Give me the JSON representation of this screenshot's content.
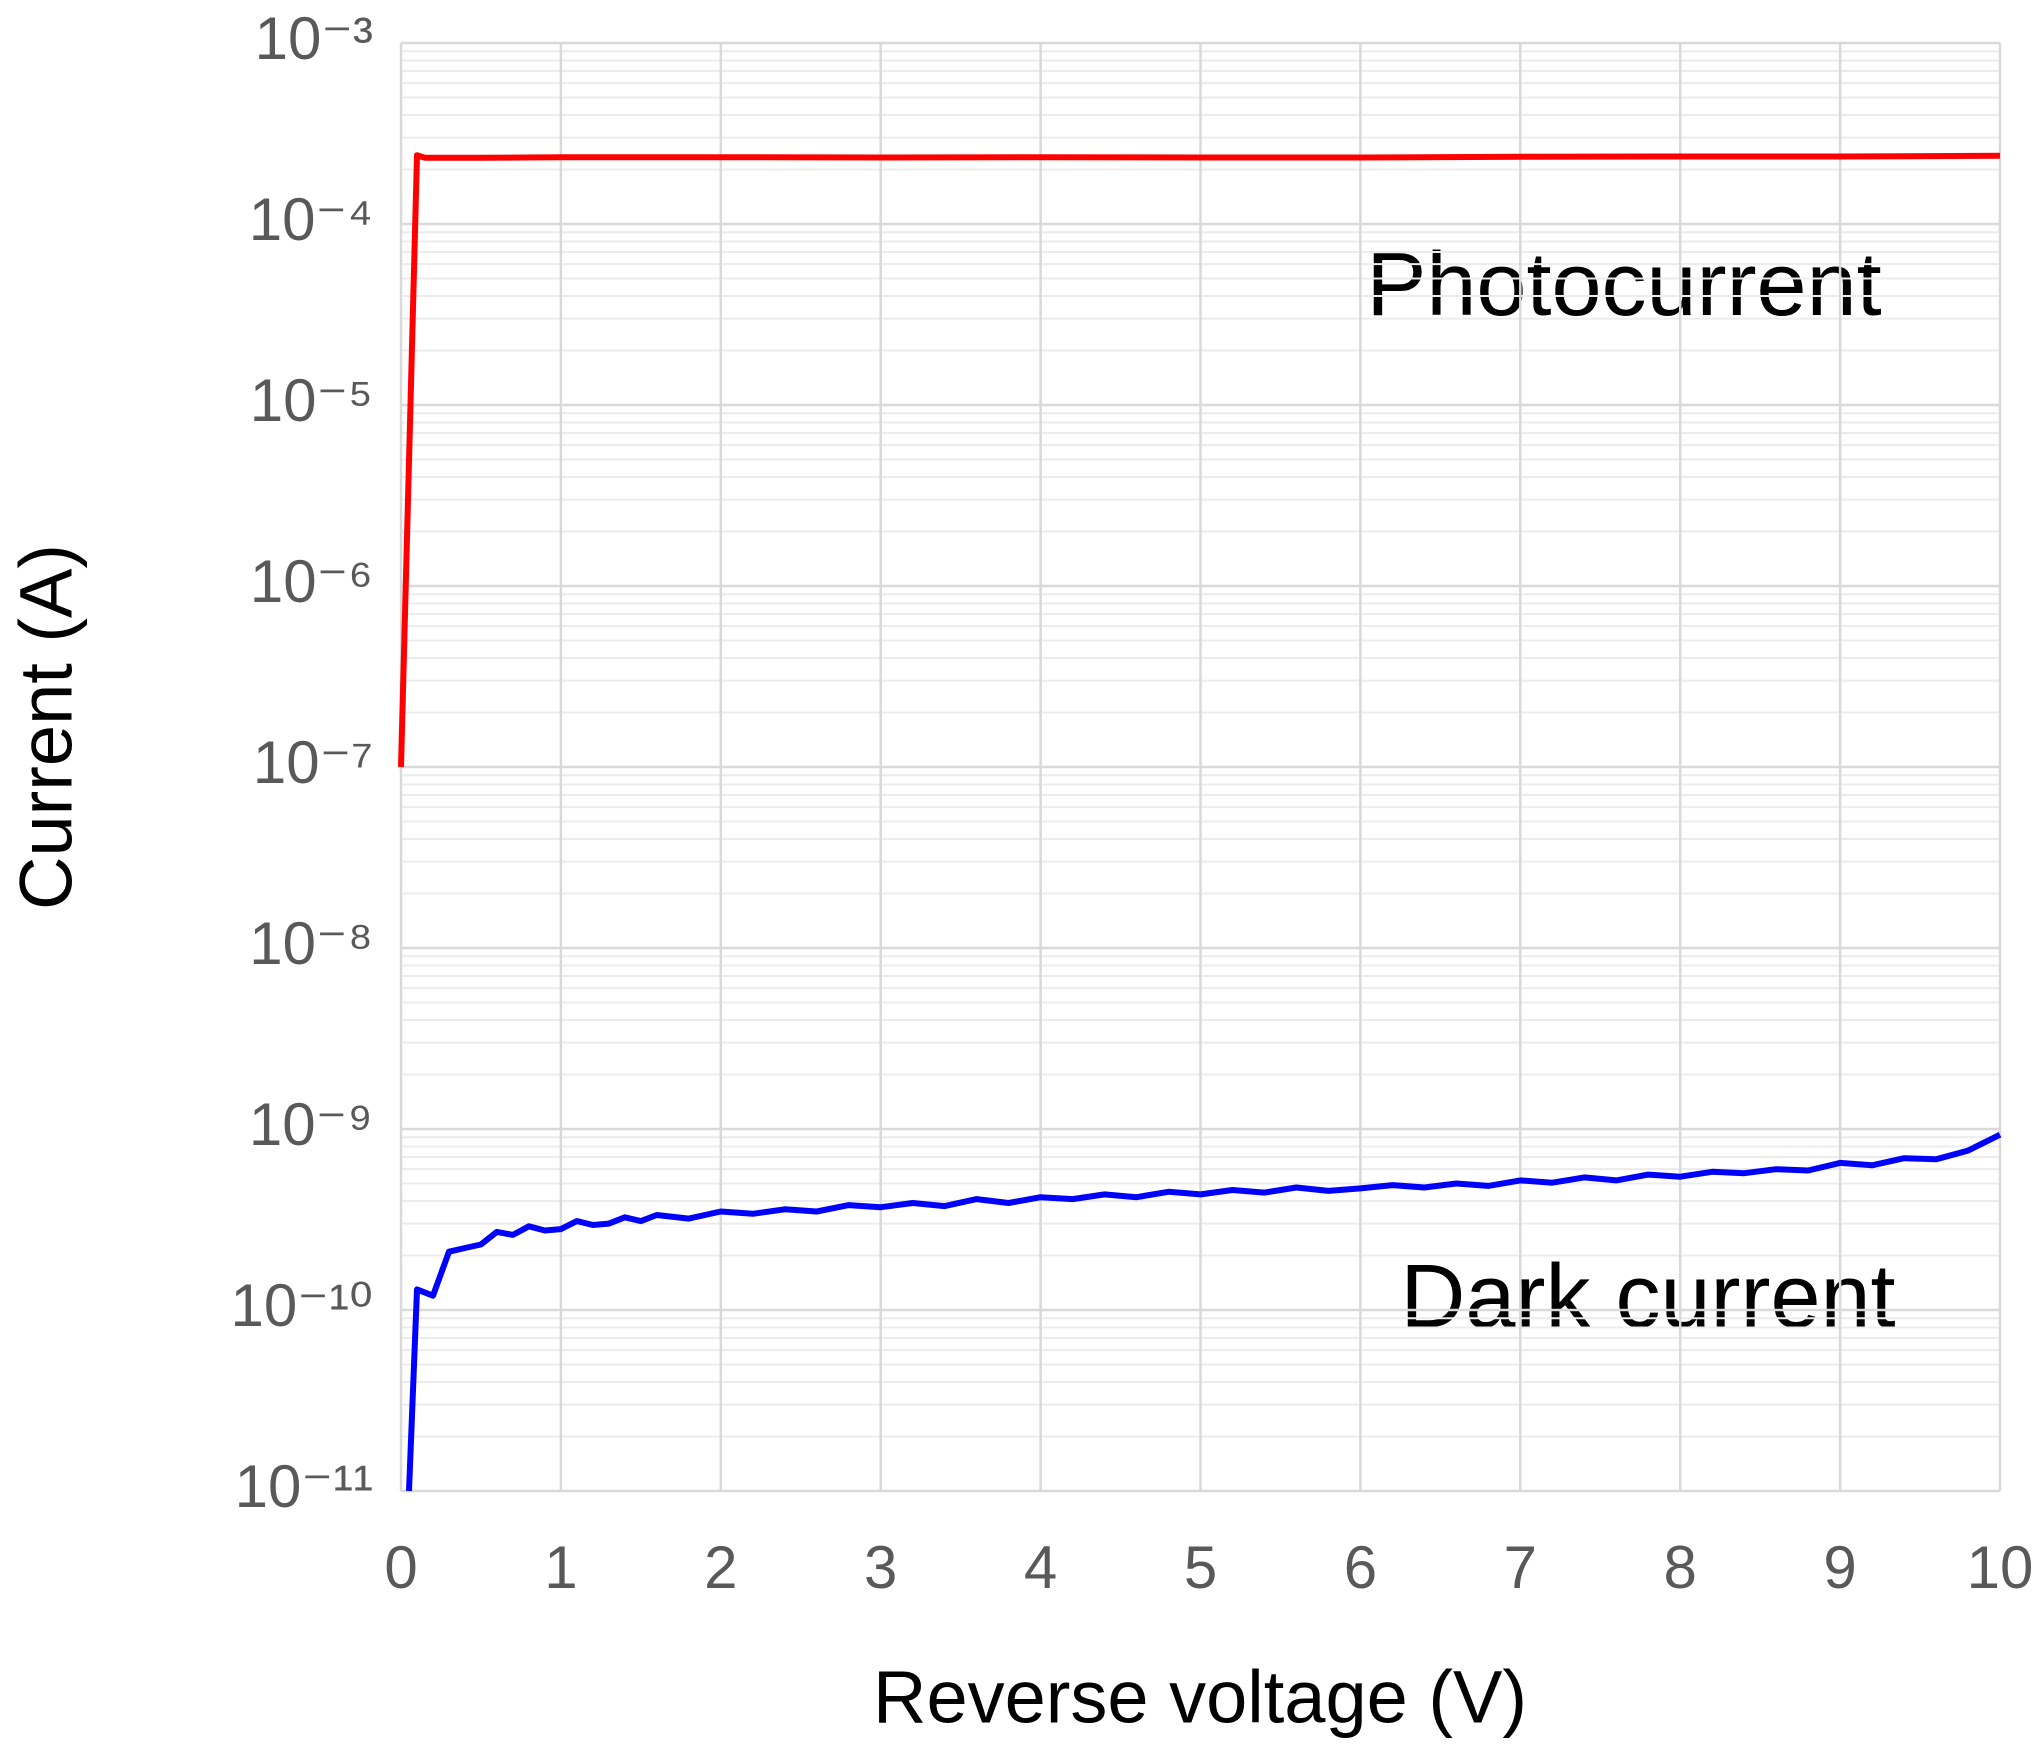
{
  "chart_data": {
    "type": "line",
    "xlabel": "Reverse voltage (V)",
    "ylabel": "Current (A)",
    "xlim": [
      0,
      10
    ],
    "xticks": [
      0,
      1,
      2,
      3,
      4,
      5,
      6,
      7,
      8,
      9,
      10
    ],
    "ylim": [
      1e-11,
      0.001
    ],
    "yticks": [
      {
        "value": 1e-11,
        "label": "10⁻¹¹"
      },
      {
        "value": 1e-10,
        "label": "10⁻¹⁰"
      },
      {
        "value": 1e-09,
        "label": "10⁻⁹"
      },
      {
        "value": 1e-08,
        "label": "10⁻⁸"
      },
      {
        "value": 1e-07,
        "label": "10⁻⁷"
      },
      {
        "value": 1e-06,
        "label": "10⁻⁶"
      },
      {
        "value": 1e-05,
        "label": "10⁻⁵"
      },
      {
        "value": 0.0001,
        "label": "10⁻⁴"
      },
      {
        "value": 0.001,
        "label": "10⁻³"
      }
    ],
    "log_y": true,
    "grid": true,
    "minor_grid": true,
    "series": [
      {
        "name": "Photocurrent",
        "color": "#ff0000",
        "x": [
          0,
          0.1,
          0.15,
          0.5,
          1,
          2,
          3,
          4,
          5,
          6,
          7,
          8,
          9,
          10
        ],
        "values": [
          1e-07,
          0.00024,
          0.000232,
          0.000232,
          0.000234,
          0.000234,
          0.000233,
          0.000234,
          0.000233,
          0.000233,
          0.000235,
          0.000236,
          0.000236,
          0.000238
        ]
      },
      {
        "name": "Dark current",
        "color": "#0000ff",
        "x": [
          0.05,
          0.1,
          0.2,
          0.3,
          0.4,
          0.5,
          0.6,
          0.7,
          0.8,
          0.9,
          1.0,
          1.1,
          1.2,
          1.3,
          1.4,
          1.5,
          1.6,
          1.8,
          2.0,
          2.2,
          2.4,
          2.6,
          2.8,
          3.0,
          3.2,
          3.4,
          3.6,
          3.8,
          4.0,
          4.2,
          4.4,
          4.6,
          4.8,
          5.0,
          5.2,
          5.4,
          5.6,
          5.8,
          6.0,
          6.2,
          6.4,
          6.6,
          6.8,
          7.0,
          7.2,
          7.4,
          7.6,
          7.8,
          8.0,
          8.2,
          8.4,
          8.6,
          8.8,
          9.0,
          9.2,
          9.4,
          9.6,
          9.8,
          10.0
        ],
        "values": [
          1e-11,
          1.3e-10,
          1.2e-10,
          2.1e-10,
          2.2e-10,
          2.3e-10,
          2.7e-10,
          2.6e-10,
          2.9e-10,
          2.75e-10,
          2.8e-10,
          3.1e-10,
          2.95e-10,
          3e-10,
          3.25e-10,
          3.1e-10,
          3.35e-10,
          3.2e-10,
          3.5e-10,
          3.4e-10,
          3.6e-10,
          3.5e-10,
          3.8e-10,
          3.7e-10,
          3.9e-10,
          3.75e-10,
          4.1e-10,
          3.9e-10,
          4.2e-10,
          4.1e-10,
          4.35e-10,
          4.2e-10,
          4.5e-10,
          4.35e-10,
          4.6e-10,
          4.45e-10,
          4.75e-10,
          4.55e-10,
          4.7e-10,
          4.9e-10,
          4.75e-10,
          5e-10,
          4.85e-10,
          5.2e-10,
          5.05e-10,
          5.4e-10,
          5.2e-10,
          5.6e-10,
          5.45e-10,
          5.8e-10,
          5.7e-10,
          6e-10,
          5.9e-10,
          6.5e-10,
          6.3e-10,
          6.9e-10,
          6.8e-10,
          7.6e-10,
          9.3e-10
        ]
      }
    ]
  }
}
